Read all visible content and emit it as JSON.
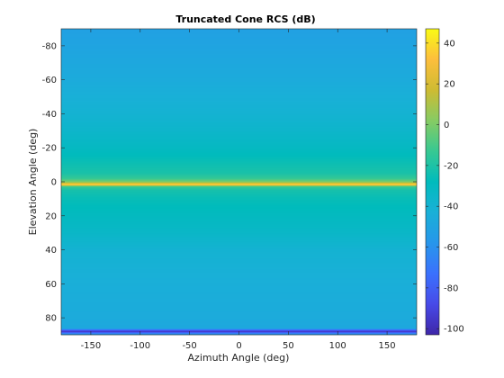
{
  "chart_data": {
    "type": "heatmap",
    "title": "Truncated Cone RCS (dB)",
    "xlabel": "Azimuth Angle (deg)",
    "ylabel": "Elevation Angle (deg)",
    "xlim": [
      -180,
      180
    ],
    "ylim": [
      -90,
      90
    ],
    "y_reversed": true,
    "x_ticks": [
      -150,
      -100,
      -50,
      0,
      50,
      100,
      150
    ],
    "y_ticks": [
      -80,
      -60,
      -40,
      -20,
      0,
      20,
      40,
      60,
      80
    ],
    "colorbar": {
      "colormap": "parula",
      "clim": [
        -103,
        47
      ],
      "ticks": [
        -100,
        -80,
        -60,
        -40,
        -20,
        0,
        20,
        40
      ]
    },
    "variation": "constant along azimuth; RCS varies only with elevation",
    "profile": {
      "elevation": [
        -90,
        -80,
        -60,
        -40,
        -30,
        -20,
        -10,
        -5,
        -2,
        0,
        1,
        1.5,
        2,
        2.5,
        3,
        5,
        10,
        20,
        30,
        40,
        60,
        80,
        86,
        86.5,
        87,
        87.5,
        88,
        88.5,
        89,
        90
      ],
      "rcs_db": [
        -52,
        -50,
        -46,
        -40,
        -36,
        -31,
        -24,
        -21,
        -14,
        0,
        20,
        45,
        20,
        0,
        -14,
        -22,
        -26,
        -30,
        -34,
        -40,
        -44,
        -46,
        -48,
        -55,
        -70,
        -85,
        -98,
        -85,
        -70,
        -55
      ]
    }
  }
}
